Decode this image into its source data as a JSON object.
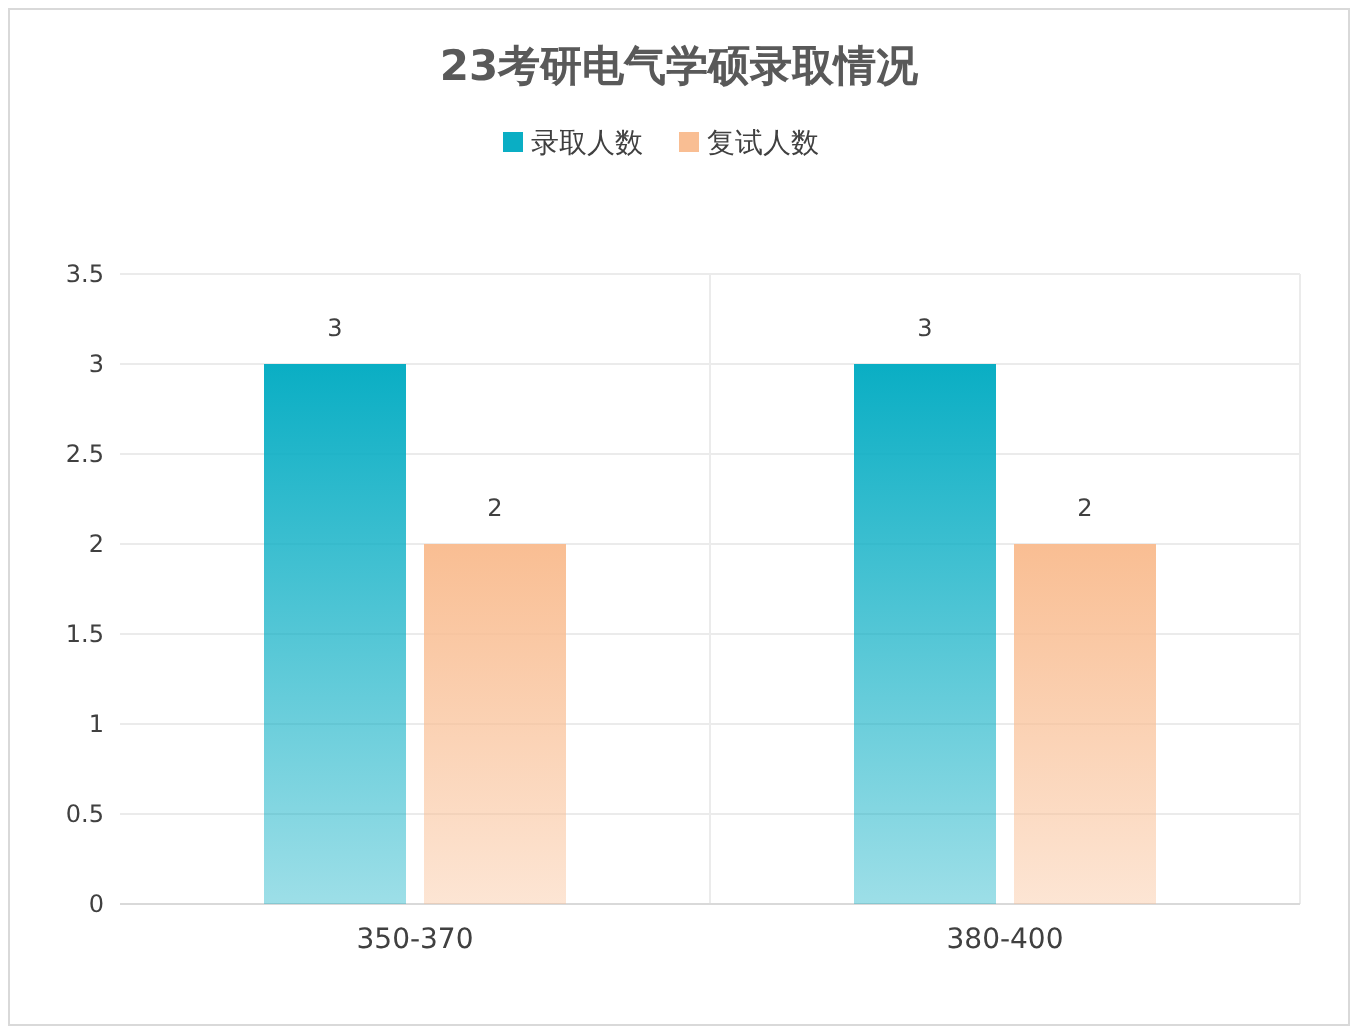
{
  "chart_data": {
    "type": "bar",
    "title": "23考研电气学硕录取情况",
    "categories": [
      "350-370",
      "380-400"
    ],
    "series": [
      {
        "name": "录取人数",
        "color": "#0aaec4",
        "values": [
          3,
          3
        ]
      },
      {
        "name": "复试人数",
        "color": "#f9be93",
        "values": [
          2,
          2
        ]
      }
    ],
    "ylim": [
      0,
      3.5
    ],
    "yticks": [
      0,
      0.5,
      1,
      1.5,
      2,
      2.5,
      3,
      3.5
    ],
    "grid": true,
    "legend": "top",
    "data_labels": true
  }
}
